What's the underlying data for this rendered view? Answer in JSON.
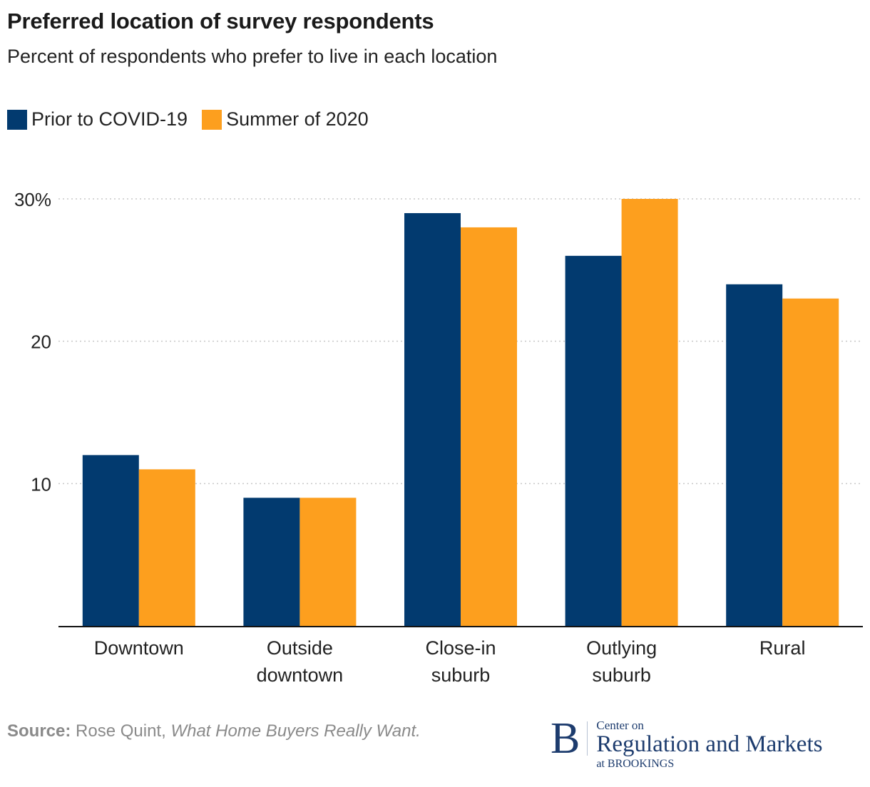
{
  "title": "Preferred location of survey respondents",
  "subtitle": "Percent of respondents who prefer to live in each location",
  "legend": [
    {
      "label": "Prior to COVID-19",
      "color": "#023a6f"
    },
    {
      "label": "Summer of 2020",
      "color": "#fd9f1e"
    }
  ],
  "source": {
    "label": "Source:",
    "text": "Rose Quint, ",
    "italic": "What Home Buyers Really Want."
  },
  "logo": {
    "letter": "B",
    "line1": "Center on",
    "line2": "Regulation and Markets",
    "line3": "at BROOKINGS"
  },
  "chart_data": {
    "type": "bar",
    "title": "Preferred location of survey respondents",
    "subtitle": "Percent of respondents who prefer to live in each location",
    "xlabel": "",
    "ylabel": "",
    "categories": [
      [
        "Downtown"
      ],
      [
        "Outside",
        "downtown"
      ],
      [
        "Close-in",
        "suburb"
      ],
      [
        "Outlying",
        "suburb"
      ],
      [
        "Rural"
      ]
    ],
    "series": [
      {
        "name": "Prior to COVID-19",
        "color": "#023a6f",
        "values": [
          12,
          9,
          29,
          26,
          24
        ]
      },
      {
        "name": "Summer of 2020",
        "color": "#fd9f1e",
        "values": [
          11,
          9,
          28,
          30,
          23
        ]
      }
    ],
    "ylim": [
      0,
      30
    ],
    "yticks": [
      {
        "value": 10,
        "label": "10"
      },
      {
        "value": 20,
        "label": "20"
      },
      {
        "value": 30,
        "label": "30%"
      }
    ],
    "grid": true,
    "legend_position": "top-left"
  }
}
